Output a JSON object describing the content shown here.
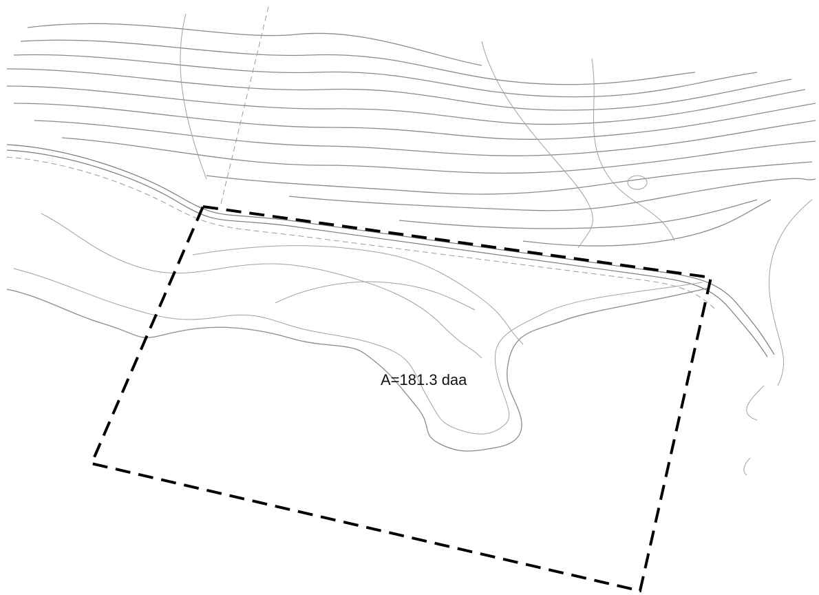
{
  "map": {
    "area_label": "A=181.3 daa"
  }
}
